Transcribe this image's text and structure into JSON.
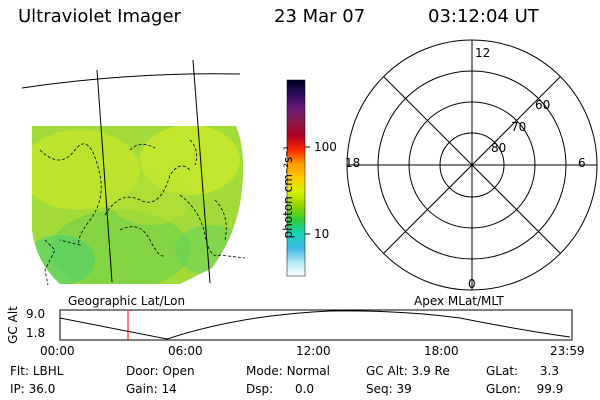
{
  "header": {
    "instrument": "Ultraviolet Imager",
    "date": "23 Mar 07",
    "time": "03:12:04 UT"
  },
  "image_panel": {
    "caption": "Geographic Lat/Lon"
  },
  "colorbar": {
    "unit_label": "photon cm⁻²s⁻¹",
    "ticks": [
      "100",
      "10"
    ],
    "colors": [
      "#000022",
      "#2a0a5a",
      "#6a1a7a",
      "#8a1a4a",
      "#b00020",
      "#ff2a00",
      "#ff9a00",
      "#ffcc00",
      "#d6ef00",
      "#8fd400",
      "#2fcf3a",
      "#19d0b8",
      "#3ab8e8",
      "#aee6f2",
      "#ffffff"
    ]
  },
  "polar_plot": {
    "caption": "Apex MLat/MLT",
    "mlt_labels": {
      "top": "12",
      "bottom": "0",
      "left": "18",
      "right": "6"
    },
    "lat_labels": [
      "60",
      "70",
      "80"
    ]
  },
  "altitude_plot": {
    "axis_label": "GC Alt",
    "y_ticks": [
      "9.0",
      "1.8"
    ],
    "x_ticks": [
      "00:00",
      "06:00",
      "12:00",
      "18:00",
      "23:59"
    ],
    "marker_color": "#ff0000"
  },
  "status": {
    "filter_label": "Flt:",
    "filter_value": "LBHL",
    "ip_label": "IP:",
    "ip_value": "36.0",
    "door_label": "Door:",
    "door_value": "Open",
    "gain_label": "Gain:",
    "gain_value": "14",
    "mode_label": "Mode:",
    "mode_value": "Normal",
    "dsp_label": "Dsp:",
    "dsp_value": "0.0",
    "gcalt_label": "GC Alt:",
    "gcalt_value": "3.9 Re",
    "seq_label": "Seq:",
    "seq_value": "39",
    "glat_label": "GLat:",
    "glat_value": "3.3",
    "glon_label": "GLon:",
    "glon_value": "99.9"
  }
}
